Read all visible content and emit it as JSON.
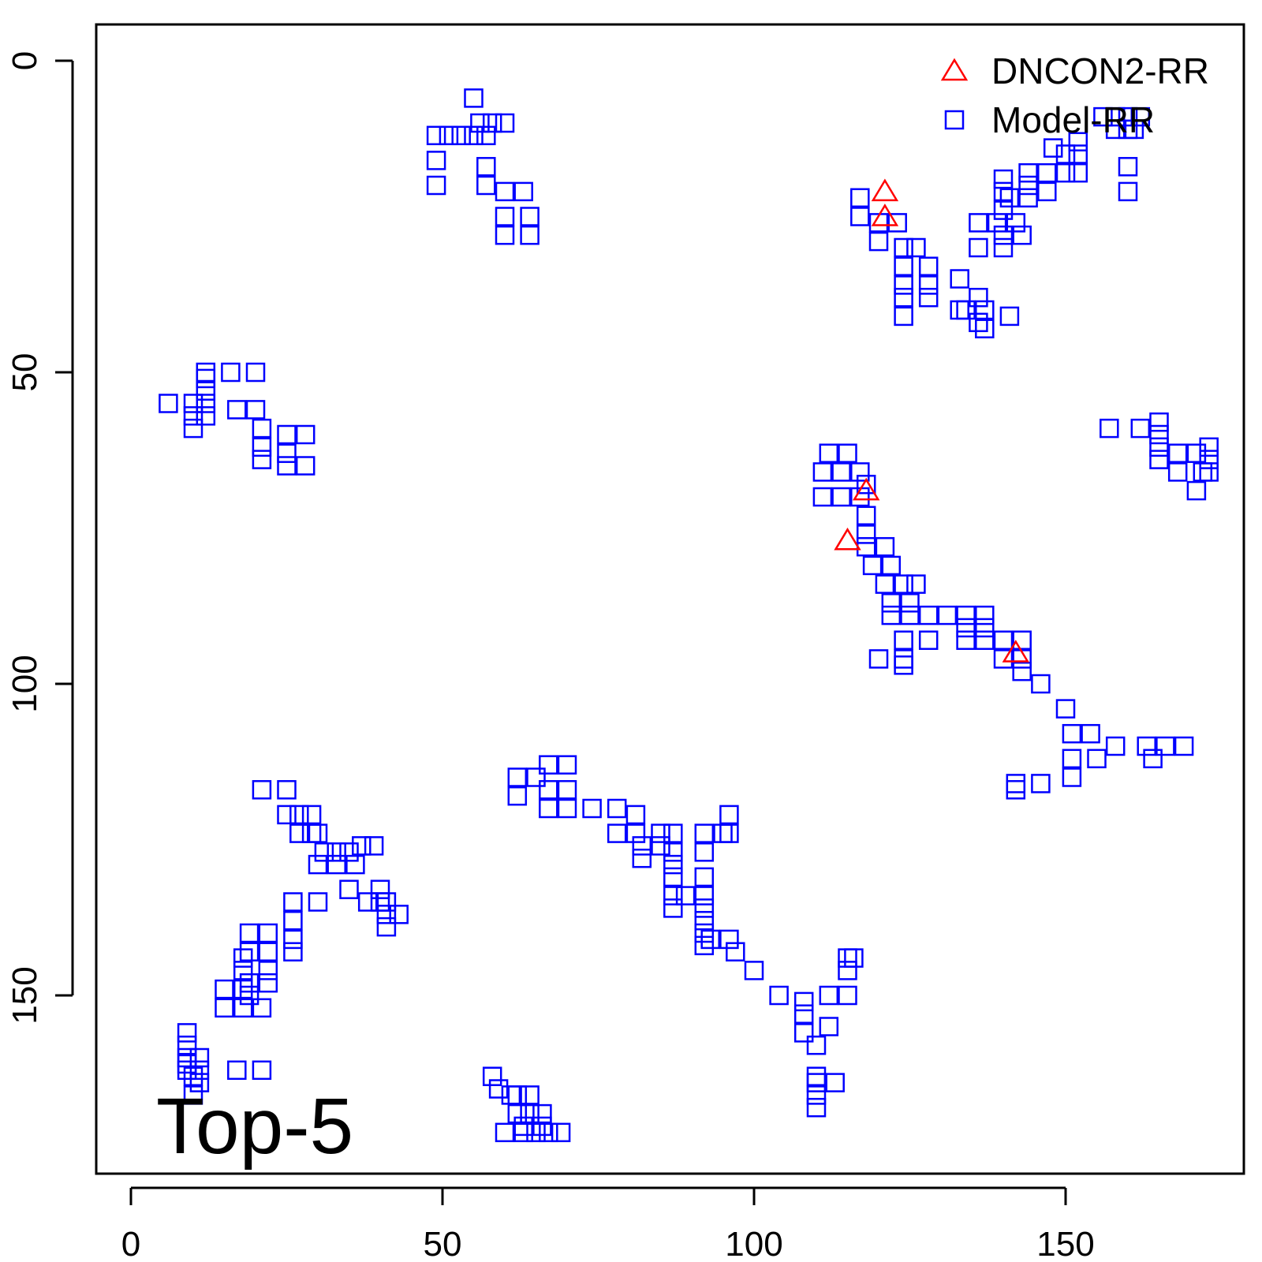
{
  "chart_data": {
    "type": "scatter",
    "title": "",
    "xlabel": "",
    "ylabel": "",
    "xlim": [
      -6,
      180
    ],
    "ylim": [
      -6,
      180
    ],
    "y_reversed": true,
    "x_ticks": [
      0,
      50,
      100,
      150
    ],
    "y_ticks": [
      0,
      50,
      100,
      150
    ],
    "grid": false,
    "legend_position": "top-right",
    "annotation": "Top-5",
    "series": [
      {
        "name": "DNCON2-RR",
        "marker": "triangle",
        "color": "#ff0000",
        "points": [
          [
            121,
            21
          ],
          [
            121,
            25
          ],
          [
            118,
            69
          ],
          [
            115,
            77
          ],
          [
            142,
            95
          ]
        ]
      },
      {
        "name": "Model-RR",
        "marker": "square",
        "color": "#0000ff",
        "points": [
          [
            55,
            6
          ],
          [
            56,
            10
          ],
          [
            58,
            10
          ],
          [
            60,
            10
          ],
          [
            49,
            12
          ],
          [
            51,
            12
          ],
          [
            53,
            12
          ],
          [
            55,
            12
          ],
          [
            57,
            12
          ],
          [
            49,
            16
          ],
          [
            49,
            20
          ],
          [
            57,
            17
          ],
          [
            57,
            20
          ],
          [
            60,
            21
          ],
          [
            63,
            21
          ],
          [
            60,
            25
          ],
          [
            60,
            28
          ],
          [
            64,
            25
          ],
          [
            64,
            28
          ],
          [
            117,
            22
          ],
          [
            117,
            25
          ],
          [
            120,
            26
          ],
          [
            123,
            26
          ],
          [
            120,
            29
          ],
          [
            124,
            30
          ],
          [
            126,
            30
          ],
          [
            124,
            33
          ],
          [
            128,
            33
          ],
          [
            124,
            36
          ],
          [
            128,
            36
          ],
          [
            124,
            38
          ],
          [
            128,
            38
          ],
          [
            124,
            41
          ],
          [
            133,
            35
          ],
          [
            136,
            38
          ],
          [
            133,
            40
          ],
          [
            134,
            40
          ],
          [
            137,
            40
          ],
          [
            136,
            42
          ],
          [
            137,
            43
          ],
          [
            141,
            41
          ],
          [
            140,
            24
          ],
          [
            140,
            28
          ],
          [
            136,
            26
          ],
          [
            139,
            26
          ],
          [
            142,
            26
          ],
          [
            143,
            28
          ],
          [
            140,
            30
          ],
          [
            136,
            30
          ],
          [
            141,
            22
          ],
          [
            144,
            22
          ],
          [
            144,
            20
          ],
          [
            147,
            21
          ],
          [
            144,
            18
          ],
          [
            147,
            18
          ],
          [
            150,
            18
          ],
          [
            152,
            18
          ],
          [
            150,
            15
          ],
          [
            152,
            15
          ],
          [
            148,
            14
          ],
          [
            152,
            13
          ],
          [
            140,
            19
          ],
          [
            140,
            21
          ],
          [
            156,
            9
          ],
          [
            158,
            9
          ],
          [
            160,
            9
          ],
          [
            162,
            9
          ],
          [
            160,
            11
          ],
          [
            161,
            11
          ],
          [
            158,
            11
          ],
          [
            160,
            17
          ],
          [
            160,
            21
          ],
          [
            6,
            55
          ],
          [
            10,
            55
          ],
          [
            10,
            57
          ],
          [
            10,
            59
          ],
          [
            12,
            51
          ],
          [
            12,
            53
          ],
          [
            12,
            55
          ],
          [
            12,
            57
          ],
          [
            12,
            50
          ],
          [
            16,
            50
          ],
          [
            20,
            50
          ],
          [
            17,
            56
          ],
          [
            20,
            56
          ],
          [
            21,
            59
          ],
          [
            21,
            62
          ],
          [
            21,
            64
          ],
          [
            25,
            60
          ],
          [
            25,
            63
          ],
          [
            25,
            65
          ],
          [
            28,
            60
          ],
          [
            28,
            65
          ],
          [
            112,
            63
          ],
          [
            115,
            63
          ],
          [
            111,
            66
          ],
          [
            114,
            66
          ],
          [
            117,
            66
          ],
          [
            118,
            68
          ],
          [
            111,
            70
          ],
          [
            114,
            70
          ],
          [
            117,
            70
          ],
          [
            118,
            73
          ],
          [
            118,
            76
          ],
          [
            118,
            78
          ],
          [
            121,
            78
          ],
          [
            119,
            81
          ],
          [
            122,
            81
          ],
          [
            121,
            84
          ],
          [
            124,
            84
          ],
          [
            126,
            84
          ],
          [
            122,
            87
          ],
          [
            125,
            87
          ],
          [
            122,
            89
          ],
          [
            125,
            89
          ],
          [
            128,
            89
          ],
          [
            131,
            89
          ],
          [
            134,
            89
          ],
          [
            137,
            89
          ],
          [
            134,
            91
          ],
          [
            137,
            91
          ],
          [
            134,
            93
          ],
          [
            137,
            93
          ],
          [
            140,
            93
          ],
          [
            143,
            93
          ],
          [
            140,
            96
          ],
          [
            143,
            96
          ],
          [
            143,
            98
          ],
          [
            124,
            93
          ],
          [
            124,
            96
          ],
          [
            120,
            96
          ],
          [
            124,
            97
          ],
          [
            128,
            93
          ],
          [
            146,
            100
          ],
          [
            150,
            104
          ],
          [
            151,
            108
          ],
          [
            154,
            108
          ],
          [
            151,
            112
          ],
          [
            151,
            115
          ],
          [
            155,
            112
          ],
          [
            158,
            110
          ],
          [
            163,
            110
          ],
          [
            166,
            110
          ],
          [
            169,
            110
          ],
          [
            164,
            112
          ],
          [
            146,
            116
          ],
          [
            142,
            116
          ],
          [
            142,
            117
          ],
          [
            157,
            59
          ],
          [
            162,
            59
          ],
          [
            165,
            58
          ],
          [
            165,
            60
          ],
          [
            165,
            62
          ],
          [
            165,
            64
          ],
          [
            168,
            63
          ],
          [
            171,
            63
          ],
          [
            173,
            62
          ],
          [
            173,
            64
          ],
          [
            168,
            66
          ],
          [
            172,
            66
          ],
          [
            173,
            66
          ],
          [
            171,
            69
          ],
          [
            62,
            115
          ],
          [
            62,
            118
          ],
          [
            65,
            115
          ],
          [
            67,
            113
          ],
          [
            67,
            117
          ],
          [
            67,
            120
          ],
          [
            70,
            113
          ],
          [
            70,
            117
          ],
          [
            70,
            120
          ],
          [
            74,
            120
          ],
          [
            78,
            120
          ],
          [
            78,
            124
          ],
          [
            81,
            121
          ],
          [
            81,
            124
          ],
          [
            82,
            126
          ],
          [
            82,
            128
          ],
          [
            85,
            124
          ],
          [
            85,
            126
          ],
          [
            87,
            124
          ],
          [
            87,
            127
          ],
          [
            87,
            129
          ],
          [
            87,
            131
          ],
          [
            87,
            134
          ],
          [
            87,
            136
          ],
          [
            89,
            134
          ],
          [
            92,
            124
          ],
          [
            92,
            127
          ],
          [
            92,
            131
          ],
          [
            92,
            134
          ],
          [
            92,
            136
          ],
          [
            92,
            138
          ],
          [
            92,
            140
          ],
          [
            92,
            142
          ],
          [
            93,
            141
          ],
          [
            95,
            124
          ],
          [
            96,
            121
          ],
          [
            96,
            124
          ],
          [
            96,
            141
          ],
          [
            97,
            143
          ],
          [
            100,
            146
          ],
          [
            104,
            150
          ],
          [
            108,
            151
          ],
          [
            108,
            153
          ],
          [
            108,
            156
          ],
          [
            110,
            158
          ],
          [
            112,
            150
          ],
          [
            112,
            155
          ],
          [
            115,
            150
          ],
          [
            115,
            144
          ],
          [
            116,
            144
          ],
          [
            115,
            146
          ],
          [
            110,
            163
          ],
          [
            110,
            164
          ],
          [
            110,
            166
          ],
          [
            110,
            168
          ],
          [
            113,
            164
          ],
          [
            21,
            117
          ],
          [
            25,
            117
          ],
          [
            25,
            121
          ],
          [
            27,
            121
          ],
          [
            29,
            121
          ],
          [
            27,
            124
          ],
          [
            29,
            124
          ],
          [
            30,
            124
          ],
          [
            31,
            127
          ],
          [
            33,
            127
          ],
          [
            35,
            127
          ],
          [
            37,
            126
          ],
          [
            30,
            129
          ],
          [
            33,
            129
          ],
          [
            36,
            129
          ],
          [
            39,
            126
          ],
          [
            35,
            133
          ],
          [
            40,
            133
          ],
          [
            38,
            135
          ],
          [
            40,
            135
          ],
          [
            41,
            135
          ],
          [
            41,
            137
          ],
          [
            43,
            137
          ],
          [
            41,
            139
          ],
          [
            26,
            135
          ],
          [
            30,
            135
          ],
          [
            26,
            138
          ],
          [
            26,
            141
          ],
          [
            26,
            143
          ],
          [
            19,
            140
          ],
          [
            22,
            140
          ],
          [
            19,
            143
          ],
          [
            22,
            143
          ],
          [
            18,
            144
          ],
          [
            18,
            146
          ],
          [
            22,
            146
          ],
          [
            19,
            148
          ],
          [
            22,
            148
          ],
          [
            15,
            149
          ],
          [
            18,
            149
          ],
          [
            15,
            152
          ],
          [
            18,
            152
          ],
          [
            21,
            152
          ],
          [
            19,
            150
          ],
          [
            9,
            156
          ],
          [
            9,
            158
          ],
          [
            9,
            160
          ],
          [
            11,
            160
          ],
          [
            9,
            161
          ],
          [
            11,
            162
          ],
          [
            9,
            162
          ],
          [
            10,
            163
          ],
          [
            11,
            164
          ],
          [
            10,
            166
          ],
          [
            17,
            162
          ],
          [
            21,
            162
          ],
          [
            58,
            163
          ],
          [
            59,
            165
          ],
          [
            61,
            166
          ],
          [
            62,
            166
          ],
          [
            64,
            166
          ],
          [
            62,
            169
          ],
          [
            64,
            169
          ],
          [
            66,
            169
          ],
          [
            63,
            171
          ],
          [
            66,
            171
          ],
          [
            60,
            172
          ],
          [
            63,
            172
          ],
          [
            65,
            172
          ],
          [
            67,
            172
          ],
          [
            69,
            172
          ]
        ]
      }
    ]
  }
}
